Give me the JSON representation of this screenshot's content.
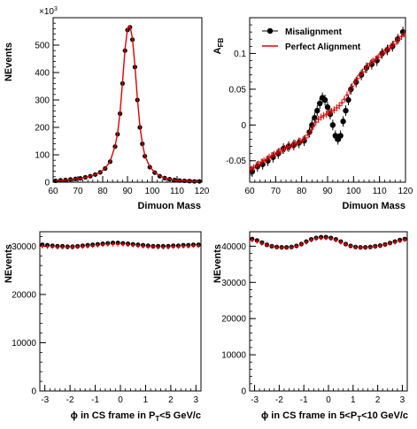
{
  "chart_data": [
    {
      "type": "scatter",
      "xlabel": "Dimuon Mass",
      "ylabel": "NEvents",
      "xlim": [
        60,
        120
      ],
      "ylim": [
        0,
        600
      ],
      "xticks": [
        "60",
        "70",
        "80",
        "90",
        "100",
        "110",
        "120"
      ],
      "yticks": [
        "0",
        "100",
        "200",
        "300",
        "400",
        "500"
      ],
      "yexponent": "×10",
      "yexponent_power": "3",
      "legend": false,
      "series": [
        {
          "color": "#000000",
          "x": [
            61,
            63,
            65,
            67,
            69,
            71,
            73,
            75,
            77,
            79,
            81,
            83,
            85,
            86,
            87,
            88,
            89,
            90,
            91,
            92,
            93,
            94,
            95,
            96,
            97,
            99,
            101,
            103,
            105,
            107,
            109,
            111,
            113,
            115,
            117,
            119
          ],
          "y": [
            5,
            7,
            8,
            10,
            12,
            14,
            18,
            22,
            28,
            36,
            50,
            75,
            130,
            175,
            250,
            360,
            480,
            555,
            565,
            520,
            420,
            300,
            200,
            140,
            95,
            55,
            35,
            22,
            15,
            11,
            8,
            6,
            5,
            4,
            3,
            3
          ]
        },
        {
          "color": "#e00000",
          "x": [
            61,
            63,
            65,
            67,
            69,
            71,
            73,
            75,
            77,
            79,
            81,
            83,
            85,
            86,
            87,
            88,
            89,
            90,
            91,
            92,
            93,
            94,
            95,
            96,
            97,
            99,
            101,
            103,
            105,
            107,
            109,
            111,
            113,
            115,
            117,
            119
          ],
          "y": [
            5,
            7,
            8,
            10,
            12,
            14,
            18,
            22,
            28,
            36,
            51,
            76,
            132,
            178,
            255,
            365,
            485,
            560,
            570,
            525,
            425,
            305,
            205,
            142,
            97,
            56,
            36,
            23,
            15,
            11,
            8,
            6,
            5,
            4,
            3,
            3
          ]
        }
      ]
    },
    {
      "type": "scatter",
      "xlabel": "Dimuon Mass",
      "ylabel": "A",
      "ylabel_sub": "FB",
      "xlim": [
        60,
        120
      ],
      "ylim": [
        -0.08,
        0.15
      ],
      "xticks": [
        "60",
        "70",
        "80",
        "90",
        "100",
        "110",
        "120"
      ],
      "yticks": [
        "-0.05",
        "0",
        "0.05",
        "0.1"
      ],
      "legend": true,
      "legend_position": "top-left",
      "series": [
        {
          "name": "Misalignment",
          "color": "#000000",
          "x": [
            61,
            63,
            65,
            67,
            69,
            71,
            73,
            75,
            77,
            79,
            81,
            83,
            84,
            85,
            86,
            87,
            88,
            89,
            90,
            91,
            92,
            93,
            94,
            95,
            96,
            97,
            98,
            99,
            101,
            103,
            105,
            107,
            109,
            111,
            113,
            115,
            117,
            119
          ],
          "y": [
            -0.065,
            -0.058,
            -0.055,
            -0.05,
            -0.045,
            -0.04,
            -0.033,
            -0.03,
            -0.028,
            -0.025,
            -0.022,
            -0.01,
            0.0,
            0.01,
            0.02,
            0.03,
            0.038,
            0.035,
            0.025,
            0.015,
            0.0,
            -0.015,
            -0.02,
            -0.015,
            0.005,
            0.02,
            0.035,
            0.05,
            0.06,
            0.07,
            0.08,
            0.085,
            0.09,
            0.1,
            0.105,
            0.11,
            0.12,
            0.13
          ]
        },
        {
          "name": "Perfect Alignment",
          "color": "#e00000",
          "x": [
            60.5,
            61.5,
            62.5,
            63.5,
            64.5,
            65.5,
            66.5,
            67.5,
            68.5,
            69.5,
            70.5,
            71.5,
            72.5,
            73.5,
            74.5,
            75.5,
            76.5,
            77.5,
            78.5,
            79.5,
            80.5,
            81.5,
            82.5,
            83.5,
            84.5,
            85.5,
            86.5,
            87.5,
            88.5,
            89.5,
            90.5,
            91.5,
            92.5,
            93.5,
            94.5,
            95.5,
            96.5,
            97.5,
            98.5,
            99.5,
            100.5,
            101.5,
            102.5,
            103.5,
            104.5,
            105.5,
            106.5,
            107.5,
            108.5,
            109.5,
            110.5,
            111.5,
            112.5,
            113.5,
            114.5,
            115.5,
            116.5,
            117.5,
            118.5,
            119.5
          ],
          "y": [
            -0.062,
            -0.06,
            -0.057,
            -0.055,
            -0.052,
            -0.05,
            -0.048,
            -0.045,
            -0.043,
            -0.041,
            -0.039,
            -0.037,
            -0.035,
            -0.033,
            -0.031,
            -0.03,
            -0.028,
            -0.026,
            -0.025,
            -0.023,
            -0.021,
            -0.018,
            -0.014,
            -0.008,
            -0.002,
            0.004,
            0.008,
            0.011,
            0.013,
            0.015,
            0.017,
            0.019,
            0.021,
            0.024,
            0.027,
            0.031,
            0.036,
            0.042,
            0.048,
            0.054,
            0.06,
            0.065,
            0.07,
            0.074,
            0.078,
            0.082,
            0.086,
            0.089,
            0.092,
            0.095,
            0.098,
            0.101,
            0.104,
            0.107,
            0.11,
            0.113,
            0.117,
            0.12,
            0.124,
            0.128
          ]
        }
      ]
    },
    {
      "type": "scatter",
      "xlabel": "ϕ in CS frame in P",
      "xlabel_sub": "T",
      "xlabel_tail": "<5 GeV/c",
      "ylabel": "NEvents",
      "xlim": [
        -3.2,
        3.2
      ],
      "ylim": [
        0,
        33000
      ],
      "xticks": [
        "-3",
        "-2",
        "-1",
        "0",
        "1",
        "2",
        "3"
      ],
      "yticks": [
        "0",
        "10000",
        "20000",
        "30000"
      ],
      "legend": false,
      "series": [
        {
          "color": "#000000",
          "x": [
            -3.1,
            -2.9,
            -2.7,
            -2.5,
            -2.3,
            -2.1,
            -1.9,
            -1.7,
            -1.5,
            -1.3,
            -1.1,
            -0.9,
            -0.7,
            -0.5,
            -0.3,
            -0.1,
            0.1,
            0.3,
            0.5,
            0.7,
            0.9,
            1.1,
            1.3,
            1.5,
            1.7,
            1.9,
            2.1,
            2.3,
            2.5,
            2.7,
            2.9,
            3.1
          ],
          "y": [
            30300,
            30200,
            30100,
            30000,
            30000,
            29900,
            29900,
            30000,
            30100,
            30200,
            30300,
            30400,
            30500,
            30600,
            30700,
            30700,
            30600,
            30500,
            30400,
            30300,
            30200,
            30100,
            30000,
            30000,
            30000,
            30000,
            30100,
            30100,
            30200,
            30200,
            30300,
            30300
          ]
        },
        {
          "color": "#e00000",
          "x": [
            -3.1,
            -2.9,
            -2.7,
            -2.5,
            -2.3,
            -2.1,
            -1.9,
            -1.7,
            -1.5,
            -1.3,
            -1.1,
            -0.9,
            -0.7,
            -0.5,
            -0.3,
            -0.1,
            0.1,
            0.3,
            0.5,
            0.7,
            0.9,
            1.1,
            1.3,
            1.5,
            1.7,
            1.9,
            2.1,
            2.3,
            2.5,
            2.7,
            2.9,
            3.1
          ],
          "y": [
            30000,
            29900,
            29900,
            29800,
            29800,
            29800,
            29800,
            29900,
            29900,
            30000,
            30100,
            30200,
            30300,
            30400,
            30400,
            30400,
            30400,
            30300,
            30200,
            30100,
            30000,
            29900,
            29900,
            29800,
            29800,
            29800,
            29900,
            29900,
            30000,
            30000,
            30100,
            30100
          ]
        }
      ]
    },
    {
      "type": "scatter",
      "xlabel": "ϕ in CS frame in 5<P",
      "xlabel_sub": "T",
      "xlabel_tail": "<10 GeV/c",
      "ylabel": "NEvents",
      "xlim": [
        -3.2,
        3.2
      ],
      "ylim": [
        0,
        44000
      ],
      "xticks": [
        "-3",
        "-2",
        "-1",
        "0",
        "1",
        "2",
        "3"
      ],
      "yticks": [
        "0",
        "10000",
        "20000",
        "30000",
        "40000"
      ],
      "legend": false,
      "series": [
        {
          "color": "#000000",
          "x": [
            -3.1,
            -2.9,
            -2.7,
            -2.5,
            -2.3,
            -2.1,
            -1.9,
            -1.7,
            -1.5,
            -1.3,
            -1.1,
            -0.9,
            -0.7,
            -0.5,
            -0.3,
            -0.1,
            0.1,
            0.3,
            0.5,
            0.7,
            0.9,
            1.1,
            1.3,
            1.5,
            1.7,
            1.9,
            2.1,
            2.3,
            2.5,
            2.7,
            2.9,
            3.1
          ],
          "y": [
            42000,
            41600,
            41000,
            40400,
            40000,
            39800,
            39700,
            39700,
            39800,
            40100,
            40600,
            41300,
            41900,
            42300,
            42500,
            42500,
            42300,
            41900,
            41300,
            40600,
            40100,
            39800,
            39700,
            39700,
            39800,
            40000,
            40200,
            40500,
            40900,
            41300,
            41700,
            42000
          ]
        },
        {
          "color": "#e00000",
          "x": [
            -3.1,
            -2.9,
            -2.7,
            -2.5,
            -2.3,
            -2.1,
            -1.9,
            -1.7,
            -1.5,
            -1.3,
            -1.1,
            -0.9,
            -0.7,
            -0.5,
            -0.3,
            -0.1,
            0.1,
            0.3,
            0.5,
            0.7,
            0.9,
            1.1,
            1.3,
            1.5,
            1.7,
            1.9,
            2.1,
            2.3,
            2.5,
            2.7,
            2.9,
            3.1
          ],
          "y": [
            41700,
            41300,
            40800,
            40300,
            40000,
            39700,
            39600,
            39600,
            39700,
            40000,
            40500,
            41100,
            41700,
            42100,
            42300,
            42300,
            42100,
            41700,
            41100,
            40500,
            40000,
            39700,
            39600,
            39600,
            39700,
            39900,
            40100,
            40400,
            40800,
            41100,
            41500,
            41800
          ]
        }
      ]
    }
  ]
}
